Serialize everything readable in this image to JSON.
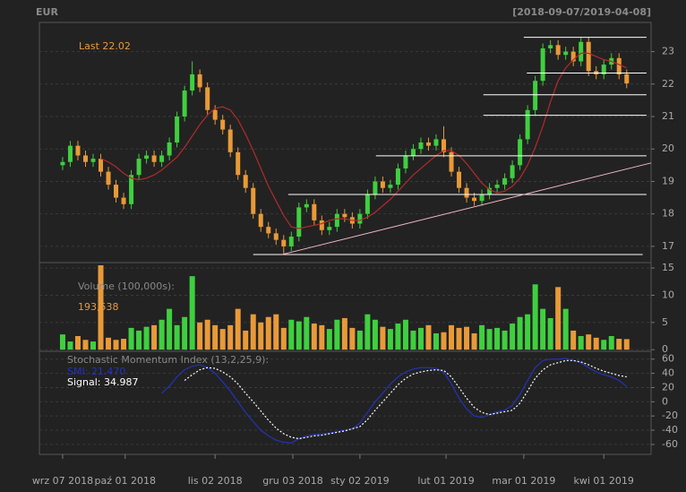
{
  "chart_data": [
    {
      "type": "candlestick",
      "title": "EUR",
      "subtitle": "[2018-09-07/2019-04-08]",
      "annotation": "Last 22.02",
      "up_color": "#3fcf3f",
      "down_color": "#e89a38",
      "annotation_color": "#e89a38",
      "open": [
        19.5,
        19.6,
        20.1,
        19.8,
        19.6,
        19.7,
        19.3,
        18.9,
        18.5,
        18.3,
        19.2,
        19.7,
        19.8,
        19.6,
        19.8,
        20.2,
        21.0,
        21.8,
        22.3,
        21.9,
        21.2,
        20.9,
        20.6,
        19.9,
        19.2,
        18.8,
        18.0,
        17.6,
        17.4,
        17.2,
        17.0,
        17.3,
        18.2,
        18.3,
        17.8,
        17.5,
        17.6,
        18.0,
        17.9,
        17.7,
        18.0,
        18.6,
        19.0,
        18.8,
        18.9,
        19.4,
        19.8,
        20.0,
        20.2,
        20.1,
        20.3,
        19.9,
        19.3,
        18.8,
        18.5,
        18.4,
        18.6,
        18.8,
        18.9,
        19.1,
        19.5,
        20.3,
        21.2,
        22.1,
        23.1,
        23.2,
        22.9,
        23.0,
        22.7,
        23.3,
        22.4,
        22.3,
        22.6,
        22.8,
        22.3
      ],
      "high": [
        19.75,
        20.25,
        20.25,
        19.95,
        19.85,
        19.85,
        19.45,
        19.05,
        18.65,
        19.35,
        19.85,
        19.95,
        19.95,
        19.95,
        20.35,
        21.15,
        21.95,
        22.7,
        22.45,
        22.05,
        21.35,
        21.05,
        20.75,
        20.05,
        19.35,
        18.95,
        18.15,
        17.75,
        17.55,
        17.35,
        17.45,
        18.35,
        18.45,
        18.45,
        17.95,
        17.75,
        18.15,
        18.15,
        18.05,
        18.15,
        18.75,
        19.15,
        19.15,
        19.05,
        19.55,
        19.95,
        20.15,
        20.35,
        20.35,
        20.45,
        20.7,
        20.05,
        19.45,
        18.95,
        18.65,
        18.75,
        18.95,
        19.05,
        19.25,
        19.65,
        20.45,
        21.35,
        22.25,
        23.25,
        23.35,
        23.35,
        23.15,
        23.15,
        23.45,
        23.45,
        22.55,
        22.75,
        22.95,
        22.95,
        22.45
      ],
      "low": [
        19.35,
        19.45,
        19.65,
        19.45,
        19.45,
        19.15,
        18.75,
        18.35,
        18.15,
        18.15,
        19.05,
        19.55,
        19.45,
        19.45,
        19.65,
        20.05,
        20.85,
        21.65,
        21.75,
        21.05,
        20.75,
        20.45,
        19.75,
        19.05,
        18.65,
        17.85,
        17.45,
        17.25,
        17.05,
        16.75,
        16.85,
        17.15,
        18.05,
        17.65,
        17.35,
        17.35,
        17.45,
        17.75,
        17.55,
        17.55,
        17.85,
        18.45,
        18.65,
        18.65,
        18.75,
        19.25,
        19.65,
        19.85,
        19.95,
        19.95,
        19.75,
        19.15,
        18.65,
        18.35,
        18.25,
        18.25,
        18.45,
        18.65,
        18.75,
        18.95,
        19.35,
        20.15,
        21.05,
        21.95,
        22.95,
        22.75,
        22.75,
        22.55,
        22.55,
        22.25,
        22.15,
        22.15,
        22.45,
        22.15,
        21.87
      ],
      "close": [
        19.6,
        20.1,
        19.8,
        19.6,
        19.7,
        19.3,
        18.9,
        18.5,
        18.3,
        19.2,
        19.7,
        19.8,
        19.6,
        19.8,
        20.2,
        21.0,
        21.8,
        22.3,
        21.9,
        21.2,
        20.9,
        20.6,
        19.9,
        19.2,
        18.8,
        18.0,
        17.6,
        17.4,
        17.2,
        17.0,
        17.3,
        18.2,
        18.3,
        17.8,
        17.5,
        17.6,
        18.0,
        17.9,
        17.7,
        18.0,
        18.6,
        19.0,
        18.8,
        18.9,
        19.4,
        19.8,
        20.0,
        20.2,
        20.1,
        20.3,
        19.9,
        19.3,
        18.8,
        18.5,
        18.4,
        18.6,
        18.8,
        18.9,
        19.1,
        19.5,
        20.3,
        21.2,
        22.1,
        23.1,
        23.2,
        22.9,
        23.0,
        22.7,
        23.3,
        22.4,
        22.3,
        22.6,
        22.8,
        22.3,
        22.02
      ],
      "series": [
        {
          "color": "#b22b2b",
          "values": [
            null,
            null,
            null,
            null,
            null,
            19.7,
            19.6,
            19.45,
            19.25,
            19.1,
            19.05,
            19.1,
            19.2,
            19.35,
            19.55,
            19.75,
            20.05,
            20.4,
            20.75,
            21.05,
            21.25,
            21.3,
            21.2,
            20.9,
            20.45,
            19.95,
            19.4,
            18.85,
            18.4,
            17.95,
            17.6,
            17.55,
            17.6,
            17.65,
            17.7,
            17.8,
            17.85,
            17.85,
            17.8,
            17.8,
            17.9,
            18.05,
            18.25,
            18.45,
            18.7,
            18.95,
            19.2,
            19.4,
            19.6,
            19.8,
            19.95,
            19.95,
            19.8,
            19.55,
            19.25,
            18.95,
            18.75,
            18.65,
            18.7,
            18.85,
            19.1,
            19.5,
            20.05,
            20.7,
            21.45,
            22.1,
            22.5,
            22.75,
            22.95,
            22.95,
            22.85,
            22.75,
            22.7,
            22.6,
            22.5
          ]
        }
      ],
      "hlines": [
        {
          "value": 23.44,
          "from": 60.5,
          "to": 76.6
        },
        {
          "value": 22.34,
          "from": 60.9,
          "to": 76.6
        },
        {
          "value": 21.67,
          "from": 55.2,
          "to": 76.6
        },
        {
          "value": 21.04,
          "from": 55.2,
          "to": 76.6
        },
        {
          "value": 19.79,
          "from": 41.1,
          "to": 76.6
        },
        {
          "value": 18.6,
          "from": 29.6,
          "to": 76.6
        },
        {
          "value": 16.75,
          "from": 25,
          "to": 76.1
        }
      ],
      "hline_color": "#ffffff",
      "trendline": {
        "color": "#f2b8c6",
        "x": [
          28.8,
          77.2
        ],
        "y": [
          16.75,
          19.57
        ]
      },
      "ylim": [
        16.5,
        23.9
      ],
      "yticks": [
        17,
        18,
        19,
        20,
        21,
        22,
        23
      ],
      "grid": true
    },
    {
      "type": "bar",
      "title": "Volume (100,000s):",
      "annotation": "193,538",
      "annotation_color": "#e89a38",
      "values": [
        2.8,
        1.5,
        2.5,
        1.8,
        1.5,
        15.5,
        2.2,
        1.8,
        2.0,
        4.0,
        3.5,
        4.2,
        4.5,
        5.5,
        7.5,
        4.5,
        6.0,
        13.5,
        5.0,
        5.5,
        4.5,
        3.8,
        4.5,
        7.5,
        3.5,
        6.5,
        5.0,
        6.0,
        6.5,
        4.0,
        5.5,
        5.2,
        6.0,
        4.8,
        4.5,
        3.8,
        5.5,
        5.8,
        4.0,
        3.5,
        6.5,
        5.5,
        4.2,
        3.8,
        4.8,
        5.5,
        3.5,
        4.0,
        4.5,
        3.0,
        3.2,
        4.5,
        4.0,
        4.2,
        3.0,
        4.5,
        3.8,
        4.0,
        3.5,
        4.8,
        6.0,
        6.5,
        12.0,
        7.5,
        5.8,
        11.5,
        7.5,
        3.5,
        2.5,
        2.8,
        2.2,
        1.8,
        2.5,
        2.0,
        1.93538
      ],
      "ylim": [
        -0.3,
        16
      ],
      "yticks": [
        0,
        5,
        10,
        15
      ],
      "grid": true
    },
    {
      "type": "line",
      "title": "Stochastic Momentum Index (13,2,25,9):",
      "series": [
        {
          "name": "SMI: 21.470",
          "color": "#2233bb",
          "dash": false,
          "values": [
            null,
            null,
            null,
            null,
            null,
            null,
            null,
            null,
            null,
            null,
            null,
            null,
            null,
            12,
            22,
            35,
            45,
            50,
            52,
            48,
            40,
            28,
            15,
            0,
            -15,
            -28,
            -40,
            -48,
            -54,
            -57,
            -58,
            -52,
            -48,
            -46,
            -45,
            -44,
            -42,
            -40,
            -38,
            -30,
            -15,
            0,
            12,
            25,
            35,
            42,
            46,
            48,
            48,
            47,
            42,
            25,
            5,
            -10,
            -20,
            -22,
            -18,
            -14,
            -12,
            -5,
            10,
            30,
            48,
            58,
            60,
            60,
            61,
            58,
            55,
            48,
            42,
            38,
            35,
            30,
            21.47
          ]
        },
        {
          "name": "Signal: 34.987",
          "color": "#ffffff",
          "dash": true,
          "values": [
            null,
            null,
            null,
            null,
            null,
            null,
            null,
            null,
            null,
            null,
            null,
            null,
            null,
            null,
            null,
            null,
            30,
            38,
            45,
            48,
            47,
            42,
            35,
            25,
            12,
            0,
            -13,
            -26,
            -37,
            -45,
            -50,
            -52,
            -50,
            -48,
            -47,
            -45,
            -43,
            -41,
            -38,
            -35,
            -25,
            -12,
            0,
            12,
            24,
            33,
            39,
            42,
            44,
            45,
            44,
            35,
            20,
            5,
            -8,
            -15,
            -18,
            -16,
            -14,
            -12,
            -2,
            15,
            33,
            45,
            52,
            55,
            58,
            58,
            56,
            52,
            47,
            43,
            40,
            37,
            34.987
          ]
        }
      ],
      "ylim": [
        -74,
        71
      ],
      "yticks": [
        -60,
        -40,
        -20,
        0,
        20,
        40,
        60
      ],
      "grid": true,
      "xlim": [
        -3.05,
        77.2
      ],
      "xticks": [
        {
          "value": 0,
          "label": "wrz 07 2018"
        },
        {
          "value": 8.2,
          "label": "paź 01 2018"
        },
        {
          "value": 20,
          "label": "lis 02 2018"
        },
        {
          "value": 30.2,
          "label": "gru 03 2018"
        },
        {
          "value": 39,
          "label": "sty 02 2019"
        },
        {
          "value": 50.3,
          "label": "lut 01 2019"
        },
        {
          "value": 60.5,
          "label": "mar 01 2019"
        },
        {
          "value": 71,
          "label": "kwi 01 2019"
        }
      ]
    }
  ]
}
